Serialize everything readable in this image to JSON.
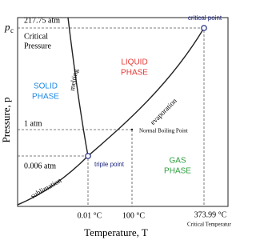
{
  "axes": {
    "y_label": "Pressure, p",
    "x_label": "Temperature, T",
    "pc_symbol": "p",
    "pc_subscript": "c"
  },
  "pressure_labels": {
    "critical": "217.75 atm",
    "critical_name_1": "Critical",
    "critical_name_2": "Pressure",
    "boiling": "1 atm",
    "triple": "0.006 atm"
  },
  "temperature_labels": {
    "triple": "0.01 °C",
    "boiling": "100 °C",
    "critical": "373.99 °C",
    "critical_name": "Critical Temperature"
  },
  "phases": {
    "solid": [
      "SOLID",
      "PHASE"
    ],
    "liquid": [
      "LIQUID",
      "PHASE"
    ],
    "gas": [
      "GAS",
      "PHASE"
    ]
  },
  "curves": {
    "melting": "melting",
    "evaporation": "evaporation",
    "sublimation": "sublimation"
  },
  "points": {
    "critical": "critical point",
    "triple": "triple point",
    "boiling": "Normal Boiling Point"
  }
}
